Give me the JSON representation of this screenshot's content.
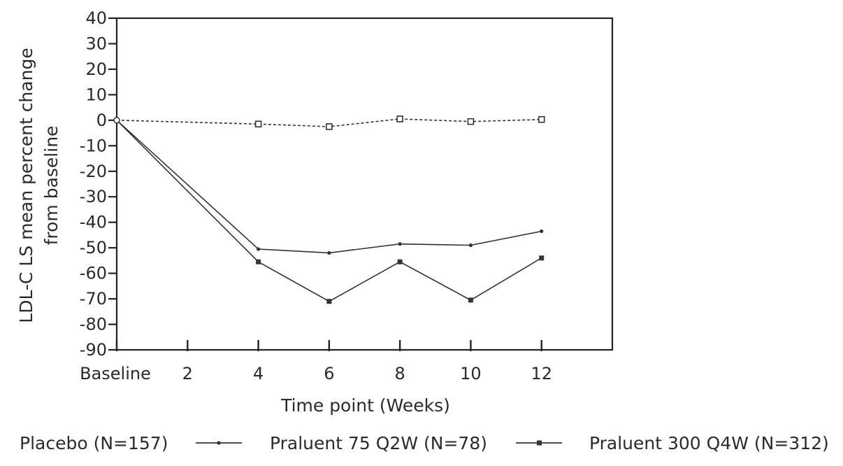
{
  "chart_data": {
    "type": "line",
    "title": "",
    "xlabel": "Time point (Weeks)",
    "ylabel_lines": [
      "LDL-C LS mean percent change",
      "from baseline"
    ],
    "x_categories": [
      "Baseline",
      "2",
      "4",
      "6",
      "8",
      "10",
      "12"
    ],
    "x_values": [
      0,
      2,
      4,
      6,
      8,
      10,
      12
    ],
    "xlim": [
      0,
      14
    ],
    "ylim": [
      -90,
      40
    ],
    "y_ticks": [
      40,
      30,
      20,
      10,
      0,
      -10,
      -20,
      -30,
      -40,
      -50,
      -60,
      -70,
      -80,
      -90
    ],
    "y_tick_labels": [
      "40",
      "30",
      "20",
      "10",
      "0",
      "-10",
      "-20",
      "-30",
      "-40",
      "-50",
      "-60",
      "-70",
      "-80",
      "-90"
    ],
    "grid": false,
    "legend_position": "bottom",
    "series": [
      {
        "name": "Placebo (N=157)",
        "x": [
          0,
          4,
          6,
          8,
          10,
          12
        ],
        "y": [
          0,
          -1.5,
          -2.5,
          0.5,
          -0.5,
          0.3
        ],
        "line_style": "dashed",
        "marker": "open-square",
        "color": "#333333"
      },
      {
        "name": "Praluent 75 Q2W (N=78)",
        "x": [
          0,
          4,
          6,
          8,
          10,
          12
        ],
        "y": [
          0,
          -50.5,
          -52,
          -48.5,
          -49,
          -43.5
        ],
        "line_style": "solid",
        "marker": "small-dot",
        "color": "#333333"
      },
      {
        "name": "Praluent 300 Q4W (N=312)",
        "x": [
          0,
          4,
          6,
          8,
          10,
          12
        ],
        "y": [
          0,
          -55.5,
          -71,
          -55.5,
          -70.5,
          -54
        ],
        "line_style": "solid",
        "marker": "filled-square",
        "color": "#333333"
      }
    ]
  }
}
